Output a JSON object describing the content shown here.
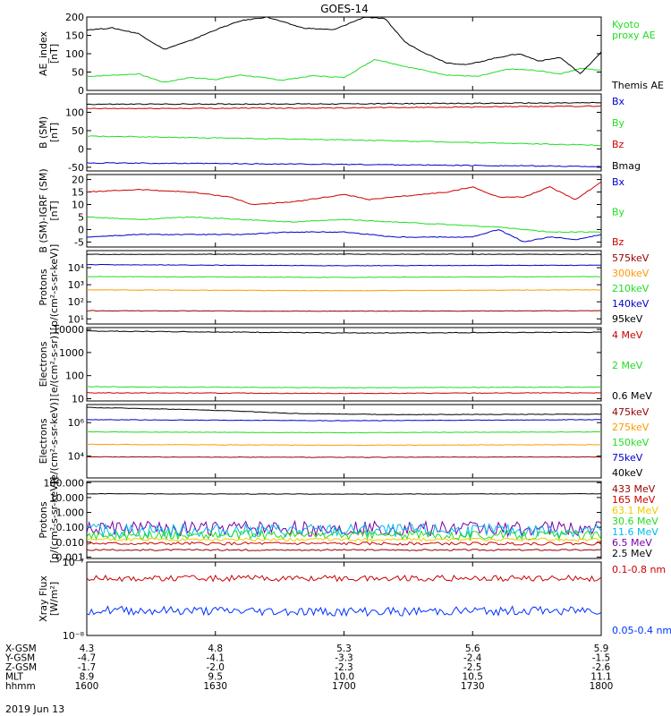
{
  "title": "GOES-14",
  "date_label": "2019 Jun 13",
  "colors": {
    "black": "#000000",
    "green": "#22dd22",
    "red": "#cc0000",
    "blue": "#0000cc",
    "orange": "#ff9900",
    "dkred": "#990000",
    "cyan": "#00bbee",
    "purple": "#7700aa",
    "yellow": "#eecc00",
    "royal": "#0033ff"
  },
  "axis_table": {
    "rows": [
      {
        "label": "X-GSM",
        "values": [
          "4.3",
          "4.8",
          "5.3",
          "5.6",
          "5.9"
        ]
      },
      {
        "label": "Y-GSM",
        "values": [
          "-4.7",
          "-4.1",
          "-3.3",
          "-2.4",
          "-1.5"
        ]
      },
      {
        "label": "Z-GSM",
        "values": [
          "-1.7",
          "-2.0",
          "-2.3",
          "-2.5",
          "-2.6"
        ]
      },
      {
        "label": "MLT",
        "values": [
          "8.9",
          "9.5",
          "10.0",
          "10.5",
          "11.1"
        ]
      },
      {
        "label": "hhmm",
        "values": [
          "1600",
          "1630",
          "1700",
          "1730",
          "1800"
        ]
      }
    ]
  },
  "chart_data": [
    {
      "id": "ae",
      "type": "line",
      "ylabel": "AE_index\n[nT]",
      "yscale": "linear",
      "ylim": [
        0,
        200
      ],
      "yticks": [
        {
          "v": 0,
          "t": "0"
        },
        {
          "v": 50,
          "t": "50"
        },
        {
          "v": 100,
          "t": "100"
        },
        {
          "v": 150,
          "t": "150"
        },
        {
          "v": 200,
          "t": "200"
        }
      ],
      "legend": [
        {
          "text": "Kyoto\nproxy AE",
          "color": "green"
        },
        {
          "text": "Themis AE",
          "color": "black"
        }
      ],
      "series": [
        {
          "name": "Kyoto proxy AE",
          "color": "green",
          "x": [
            0,
            0.1,
            0.15,
            0.2,
            0.25,
            0.3,
            0.38,
            0.44,
            0.5,
            0.56,
            0.62,
            0.7,
            0.76,
            0.82,
            0.87,
            0.92,
            0.96,
            1
          ],
          "y": [
            38,
            45,
            22,
            35,
            30,
            42,
            28,
            40,
            35,
            85,
            65,
            42,
            38,
            58,
            55,
            45,
            60,
            55
          ]
        },
        {
          "name": "Themis AE",
          "color": "black",
          "x": [
            0,
            0.05,
            0.1,
            0.15,
            0.2,
            0.25,
            0.3,
            0.35,
            0.42,
            0.48,
            0.54,
            0.58,
            0.62,
            0.66,
            0.7,
            0.74,
            0.8,
            0.84,
            0.88,
            0.92,
            0.96,
            1
          ],
          "y": [
            165,
            170,
            155,
            112,
            135,
            165,
            190,
            200,
            170,
            165,
            200,
            195,
            130,
            100,
            75,
            70,
            90,
            100,
            80,
            90,
            45,
            105
          ]
        }
      ]
    },
    {
      "id": "b",
      "type": "line",
      "ylabel": "B (SM)\n[nT]",
      "yscale": "linear",
      "ylim": [
        -60,
        150
      ],
      "yticks": [
        {
          "v": -50,
          "t": "-50"
        },
        {
          "v": 0,
          "t": "0"
        },
        {
          "v": 50,
          "t": "50"
        },
        {
          "v": 100,
          "t": "100"
        }
      ],
      "legend": [
        {
          "text": "Bx",
          "color": "blue"
        },
        {
          "text": "By",
          "color": "green"
        },
        {
          "text": "Bz",
          "color": "red"
        },
        {
          "text": "Bmag",
          "color": "black"
        }
      ],
      "series": [
        {
          "name": "Bmag",
          "color": "black",
          "x": [
            0,
            0.5,
            1
          ],
          "y": [
            122,
            123,
            126
          ]
        },
        {
          "name": "Bz",
          "color": "red",
          "x": [
            0,
            0.5,
            1
          ],
          "y": [
            110,
            112,
            117
          ]
        },
        {
          "name": "By",
          "color": "green",
          "x": [
            0,
            0.5,
            1
          ],
          "y": [
            35,
            25,
            10
          ]
        },
        {
          "name": "Bx",
          "color": "blue",
          "x": [
            0,
            0.5,
            1
          ],
          "y": [
            -38,
            -42,
            -48
          ]
        }
      ]
    },
    {
      "id": "bigrf",
      "type": "line",
      "ylabel": "B (SM)-IGRF (SM)\n[nT]",
      "yscale": "linear",
      "ylim": [
        -7,
        22
      ],
      "yticks": [
        {
          "v": -5,
          "t": "-5"
        },
        {
          "v": 0,
          "t": "0"
        },
        {
          "v": 5,
          "t": "5"
        },
        {
          "v": 10,
          "t": "10"
        },
        {
          "v": 15,
          "t": "15"
        },
        {
          "v": 20,
          "t": "20"
        }
      ],
      "legend": [
        {
          "text": "Bx",
          "color": "blue"
        },
        {
          "text": "By",
          "color": "green"
        },
        {
          "text": "Bz",
          "color": "red"
        }
      ],
      "series": [
        {
          "name": "Bz",
          "color": "red",
          "x": [
            0,
            0.1,
            0.2,
            0.28,
            0.32,
            0.4,
            0.5,
            0.55,
            0.6,
            0.7,
            0.75,
            0.8,
            0.85,
            0.9,
            0.95,
            1
          ],
          "y": [
            15,
            16,
            15,
            13,
            10,
            11,
            14,
            12,
            13,
            15,
            17,
            13,
            13,
            17,
            12,
            19
          ]
        },
        {
          "name": "By",
          "color": "green",
          "x": [
            0,
            0.1,
            0.2,
            0.3,
            0.4,
            0.5,
            0.6,
            0.7,
            0.8,
            0.9,
            1
          ],
          "y": [
            5,
            4,
            5,
            4,
            3,
            4,
            3,
            2,
            1,
            -1,
            -1
          ]
        },
        {
          "name": "Bx",
          "color": "blue",
          "x": [
            0,
            0.1,
            0.2,
            0.3,
            0.4,
            0.5,
            0.6,
            0.7,
            0.75,
            0.8,
            0.85,
            0.9,
            0.95,
            1
          ],
          "y": [
            -3,
            -2,
            -2,
            -2,
            -1,
            -1,
            -3,
            -3,
            -3,
            0,
            -5,
            -3,
            -4,
            -2
          ]
        }
      ]
    },
    {
      "id": "protons_kev",
      "type": "line",
      "ylabel": "Protons\n[p/(cm²-s-sr-keV)]",
      "yscale": "log",
      "ylim": [
        5,
        100000
      ],
      "yticks": [
        {
          "v": 10,
          "t": "10¹"
        },
        {
          "v": 100,
          "t": "10²"
        },
        {
          "v": 1000,
          "t": "10³"
        },
        {
          "v": 10000,
          "t": "10⁴"
        }
      ],
      "legend": [
        {
          "text": "575keV",
          "color": "dkred"
        },
        {
          "text": "300keV",
          "color": "orange"
        },
        {
          "text": "210keV",
          "color": "green"
        },
        {
          "text": "140keV",
          "color": "blue"
        },
        {
          "text": "95keV",
          "color": "black"
        }
      ],
      "series": [
        {
          "name": "95keV",
          "color": "black",
          "x": [
            0,
            0.5,
            1
          ],
          "y": [
            60000,
            62000,
            60000
          ]
        },
        {
          "name": "140keV",
          "color": "blue",
          "x": [
            0,
            0.5,
            1
          ],
          "y": [
            15000,
            13000,
            14000
          ]
        },
        {
          "name": "210keV",
          "color": "green",
          "x": [
            0,
            0.5,
            1
          ],
          "y": [
            3000,
            2700,
            3000
          ]
        },
        {
          "name": "300keV",
          "color": "orange",
          "x": [
            0,
            0.5,
            1
          ],
          "y": [
            500,
            450,
            500
          ]
        },
        {
          "name": "575keV",
          "color": "dkred",
          "x": [
            0,
            0.5,
            1
          ],
          "y": [
            30,
            28,
            30
          ]
        }
      ]
    },
    {
      "id": "electrons_mev",
      "type": "line",
      "ylabel": "Electrons\n[e/(cm²-s-sr)]",
      "yscale": "log",
      "ylim": [
        8,
        12000
      ],
      "yticks": [
        {
          "v": 10,
          "t": "10"
        },
        {
          "v": 100,
          "t": "100"
        },
        {
          "v": 1000,
          "t": "1000"
        },
        {
          "v": 10000,
          "t": "10000"
        }
      ],
      "legend": [
        {
          "text": "4 MeV",
          "color": "red"
        },
        {
          "text": "2 MeV",
          "color": "green"
        },
        {
          "text": "0.6 MeV",
          "color": "black"
        }
      ],
      "series": [
        {
          "name": "0.6 MeV",
          "color": "black",
          "x": [
            0,
            0.5,
            1
          ],
          "y": [
            8500,
            7000,
            7500
          ]
        },
        {
          "name": "2 MeV",
          "color": "green",
          "x": [
            0,
            0.5,
            1
          ],
          "y": [
            33,
            30,
            32
          ]
        },
        {
          "name": "4 MeV",
          "color": "red",
          "x": [
            0,
            0.5,
            1
          ],
          "y": [
            18,
            17,
            18
          ]
        }
      ]
    },
    {
      "id": "electrons_kev",
      "type": "line",
      "ylabel": "Electrons\n[e/(cm²-s-sr-keV)]",
      "yscale": "log",
      "ylim": [
        500,
        12000000
      ],
      "yticks": [
        {
          "v": 10000,
          "t": "10⁴"
        },
        {
          "v": 1000000,
          "t": "10⁶"
        }
      ],
      "legend": [
        {
          "text": "475keV",
          "color": "dkred"
        },
        {
          "text": "275keV",
          "color": "orange"
        },
        {
          "text": "150keV",
          "color": "green"
        },
        {
          "text": "75keV",
          "color": "blue"
        },
        {
          "text": "40keV",
          "color": "black"
        }
      ],
      "series": [
        {
          "name": "40keV",
          "color": "black",
          "x": [
            0,
            0.2,
            0.4,
            0.6,
            1
          ],
          "y": [
            8000000,
            6000000,
            3500000,
            3000000,
            3200000
          ]
        },
        {
          "name": "75keV",
          "color": "blue",
          "x": [
            0,
            0.5,
            1
          ],
          "y": [
            1500000,
            1300000,
            1500000
          ]
        },
        {
          "name": "150keV",
          "color": "green",
          "x": [
            0,
            0.5,
            1
          ],
          "y": [
            280000,
            250000,
            280000
          ]
        },
        {
          "name": "275keV",
          "color": "orange",
          "x": [
            0,
            0.5,
            1
          ],
          "y": [
            50000,
            45000,
            48000
          ]
        },
        {
          "name": "475keV",
          "color": "dkred",
          "x": [
            0,
            0.5,
            1
          ],
          "y": [
            9000,
            8500,
            9000
          ]
        }
      ]
    },
    {
      "id": "protons_mev",
      "type": "line",
      "ylabel": "Protons\n[p/(cm²-s-sr-keV)]",
      "yscale": "log",
      "ylim": [
        0.0008,
        120
      ],
      "yticks": [
        {
          "v": 0.001,
          "t": "0.001"
        },
        {
          "v": 0.01,
          "t": "0.010"
        },
        {
          "v": 0.1,
          "t": "0.100"
        },
        {
          "v": 1,
          "t": "1.000"
        },
        {
          "v": 10,
          "t": "10.000"
        },
        {
          "v": 100,
          "t": "100.000"
        }
      ],
      "legend": [
        {
          "text": "433 MeV",
          "color": "dkred"
        },
        {
          "text": "165 MeV",
          "color": "red"
        },
        {
          "text": "63.1 MeV",
          "color": "yellow"
        },
        {
          "text": "30.6 MeV",
          "color": "green"
        },
        {
          "text": "11.6 MeV",
          "color": "cyan"
        },
        {
          "text": "6.5 MeV",
          "color": "purple"
        },
        {
          "text": "2.5 MeV",
          "color": "black"
        }
      ],
      "series": [
        {
          "name": "2.5 MeV",
          "color": "black",
          "x": [
            0,
            0.5,
            1
          ],
          "y": [
            18,
            17,
            18
          ]
        },
        {
          "name": "6.5 MeV",
          "color": "purple",
          "x": [
            0,
            0.5,
            1
          ],
          "y": [
            0.08,
            0.08,
            0.08
          ],
          "noise": 0.5
        },
        {
          "name": "11.6 MeV",
          "color": "cyan",
          "x": [
            0,
            0.5,
            1
          ],
          "y": [
            0.06,
            0.06,
            0.06
          ],
          "noise": 0.45
        },
        {
          "name": "30.6 MeV",
          "color": "green",
          "x": [
            0,
            0.5,
            1
          ],
          "y": [
            0.03,
            0.03,
            0.03
          ],
          "noise": 0.3
        },
        {
          "name": "63.1 MeV",
          "color": "yellow",
          "x": [
            0,
            0.5,
            1
          ],
          "y": [
            0.015,
            0.015,
            0.015
          ],
          "noise": 0.1
        },
        {
          "name": "165 MeV",
          "color": "red",
          "x": [
            0,
            0.5,
            1
          ],
          "y": [
            0.008,
            0.008,
            0.008
          ],
          "noise": 0.1
        },
        {
          "name": "433 MeV",
          "color": "dkred",
          "x": [
            0,
            0.5,
            1
          ],
          "y": [
            0.003,
            0.003,
            0.003
          ],
          "noise": 0.05
        }
      ]
    },
    {
      "id": "xray",
      "type": "line",
      "ylabel": "Xray Flux\n[W/m²]",
      "yscale": "log",
      "ylim": [
        1e-08,
        1e-07
      ],
      "yticks": [
        {
          "v": 1e-08,
          "t": "10⁻⁸"
        },
        {
          "v": 1e-07,
          "t": "10⁻⁷"
        }
      ],
      "legend": [
        {
          "text": "0.1-0.8 nm",
          "color": "red"
        },
        {
          "text": "0.05-0.4 nm",
          "color": "royal"
        }
      ],
      "series": [
        {
          "name": "0.1-0.8 nm",
          "color": "red",
          "x": [
            0,
            0.5,
            1
          ],
          "y": [
            6e-08,
            6e-08,
            6e-08
          ],
          "noise": 0.04
        },
        {
          "name": "0.05-0.4 nm",
          "color": "royal",
          "x": [
            0,
            0.5,
            1
          ],
          "y": [
            2.2e-08,
            2.1e-08,
            2.2e-08
          ],
          "noise": 0.06
        }
      ]
    }
  ]
}
